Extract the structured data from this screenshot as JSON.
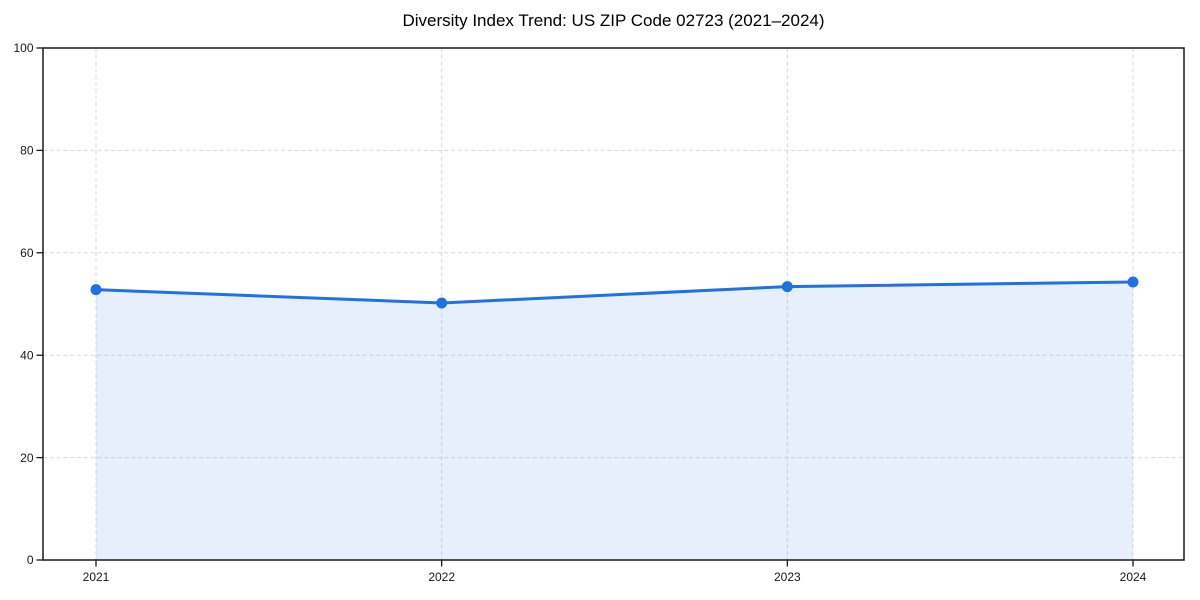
{
  "chart_data": {
    "type": "area",
    "title": "Diversity Index Trend: US ZIP Code 02723 (2021–2024)",
    "x": [
      2021,
      2022,
      2023,
      2024
    ],
    "x_tick_labels": [
      "2021",
      "2022",
      "2023",
      "2024"
    ],
    "series": [
      {
        "name": "Diversity Index",
        "values": [
          52.8,
          50.2,
          53.4,
          54.3
        ]
      }
    ],
    "xlabel": "",
    "ylabel": "",
    "ylim": [
      0,
      100
    ],
    "y_ticks": [
      0,
      20,
      40,
      60,
      80,
      100
    ],
    "grid": true,
    "grid_style": "dashed",
    "legend_position": "none",
    "colors": {
      "line": "#2271e3",
      "marker": "#2271e3",
      "fill": "rgba(34,113,227,0.11)",
      "grid": "#d9d9d9",
      "axis": "#1a1a1a",
      "tick_text": "#1a1a1a",
      "background": "#ffffff"
    }
  }
}
